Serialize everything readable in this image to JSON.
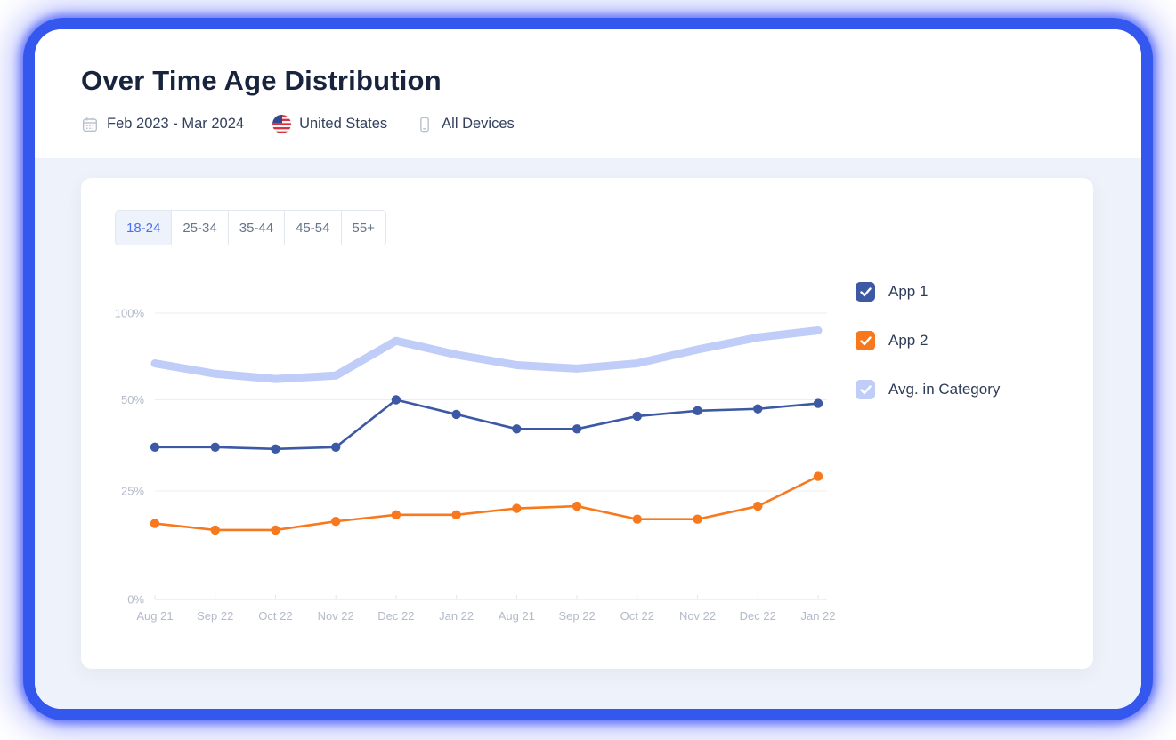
{
  "colors": {
    "frame_blue": "#3457EE",
    "panel_bg": "#EEF2FA",
    "accent_blue": "#4C70F0",
    "app1": "#3D59A4",
    "app2": "#F8791D",
    "avg": "#BFCDF8",
    "gridline": "#ECEEF4",
    "axis": "#E3E6ED",
    "tick_text": "#B3BAC9"
  },
  "header": {
    "title": "Over Time Age Distribution",
    "meta": {
      "date_range": "Feb 2023 - Mar 2024",
      "country": "United States",
      "devices": "All Devices"
    }
  },
  "tabs": {
    "items": [
      {
        "label": "18-24",
        "selected": true
      },
      {
        "label": "25-34",
        "selected": false
      },
      {
        "label": "35-44",
        "selected": false
      },
      {
        "label": "45-54",
        "selected": false
      },
      {
        "label": "55+",
        "selected": false
      }
    ]
  },
  "legend": [
    {
      "label": "App 1",
      "color": "#3D59A4",
      "checked": true
    },
    {
      "label": "App 2",
      "color": "#F8791D",
      "checked": true
    },
    {
      "label": "Avg. in Category",
      "color": "#BFCDF8",
      "checked": true
    }
  ],
  "chart_data": {
    "type": "line",
    "title": "",
    "xlabel": "",
    "ylabel": "",
    "x": [
      "Aug 21",
      "Sep 22",
      "Oct 22",
      "Nov 22",
      "Dec 22",
      "Jan 22",
      "Aug 21",
      "Sep 22",
      "Oct 22",
      "Nov 22",
      "Dec 22",
      "Jan 22"
    ],
    "series": [
      {
        "name": "Avg. in Category",
        "color": "#BFCDF8",
        "style": "band",
        "values": [
          71,
          65,
          62,
          64,
          84,
          76,
          70,
          68,
          71,
          79,
          86,
          90
        ]
      },
      {
        "name": "App 1",
        "color": "#3D59A4",
        "style": "line-dots",
        "values": [
          37,
          37,
          36.5,
          37,
          50,
          46,
          42,
          42,
          45.5,
          47,
          47.5,
          49
        ]
      },
      {
        "name": "App 2",
        "color": "#F8791D",
        "style": "line-dots",
        "values": [
          17.5,
          16,
          16,
          18,
          19.5,
          19.5,
          21,
          21.5,
          18.5,
          18.5,
          21.5,
          29
        ]
      }
    ],
    "ylim": [
      0,
      100
    ],
    "y_ticks": [
      0,
      25,
      50,
      100
    ],
    "y_tick_labels": [
      "0%",
      "25%",
      "50%",
      "100%"
    ],
    "y_scale": "non-uniform tick spacing (25/50/100 compressed upward)",
    "grid": true,
    "legend_position": "right",
    "unit": "%"
  }
}
